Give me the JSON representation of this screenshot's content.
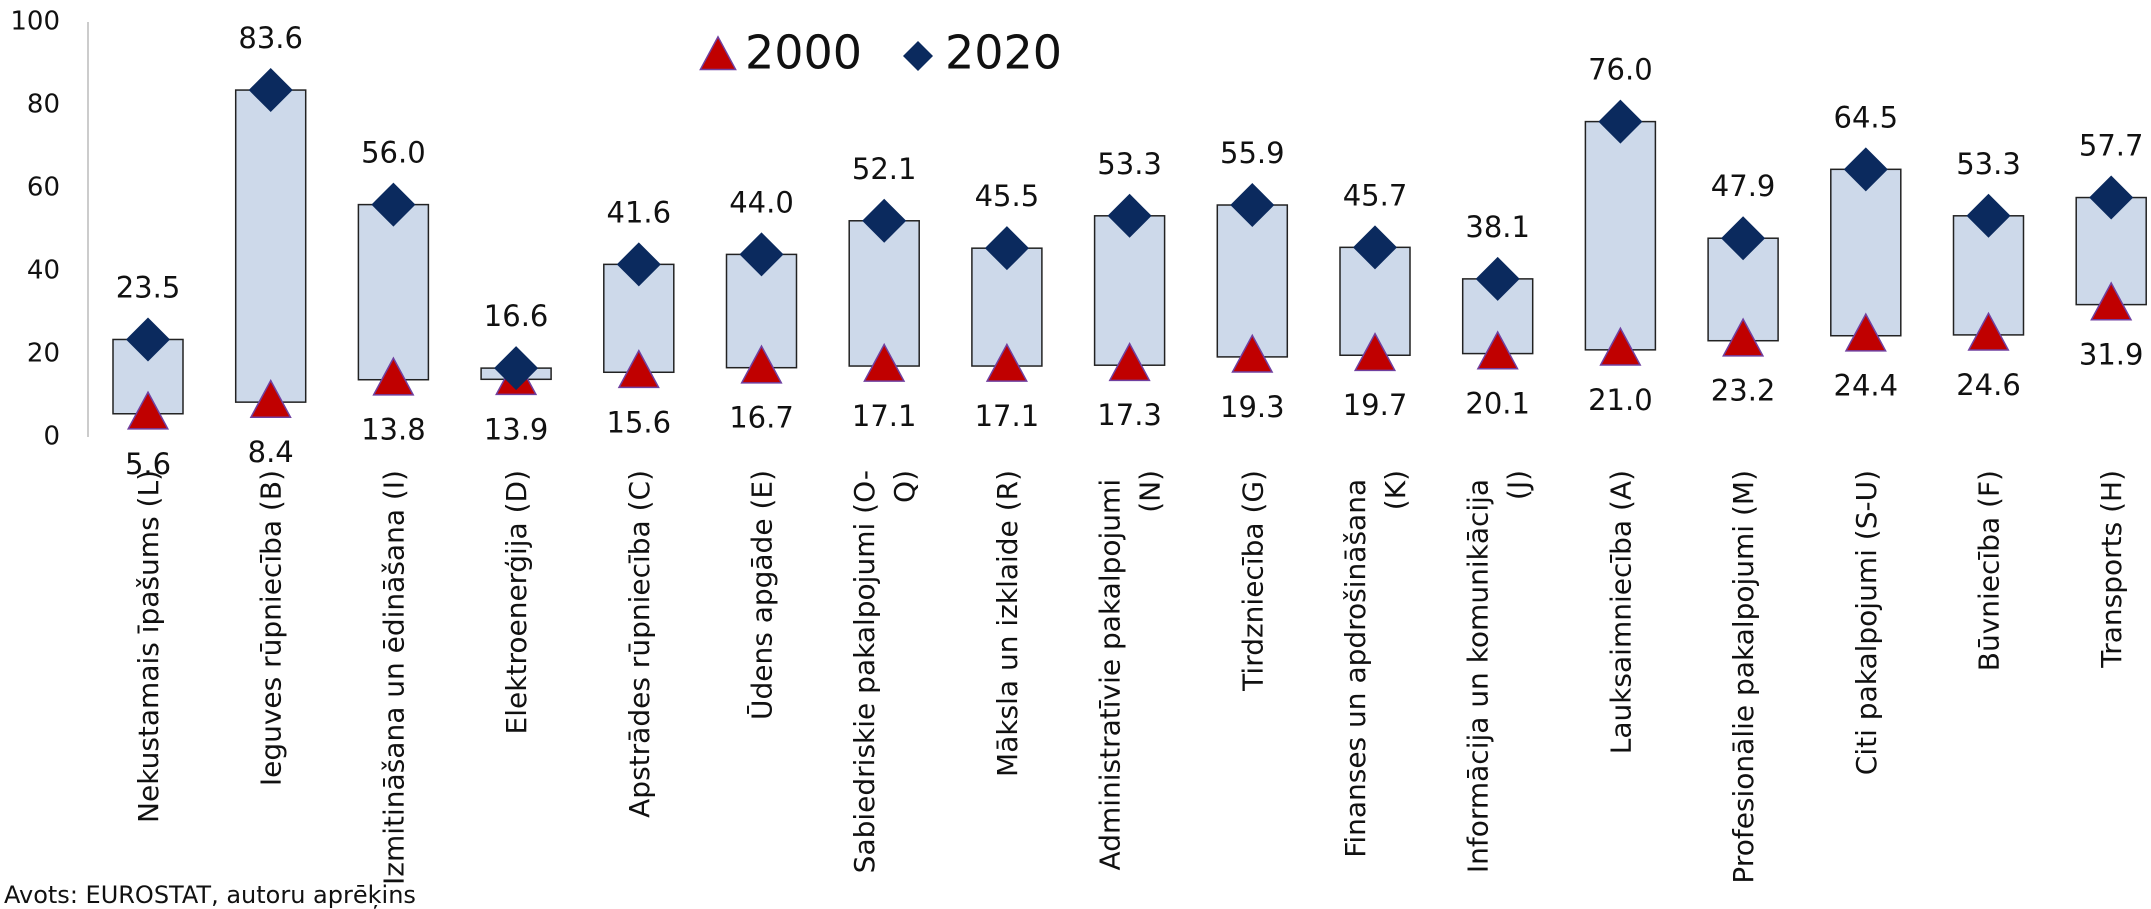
{
  "chart_data": {
    "type": "range",
    "categories": [
      "Nekustamais īpašums (L)",
      "Ieguves rūpniecība (B)",
      "Izmitināšana un ēdināšana (I)",
      "Elektroenerģija (D)",
      "Apstrādes rūpniecība (C)",
      "Ūdens apgāde (E)",
      "Sabiedriskie pakalpojumi (O-Q)",
      "Māksla un izklaide (R)",
      "Administratīvie pakalpojumi (N)",
      "Tirdzniecība (G)",
      "Finanses un apdrošināšana (K)",
      "Informācija un komunikācija (J)",
      "Lauksaimniecība (A)",
      "Profesionālie pakalpojumi (M)",
      "Citi pakalpojumi (S-U)",
      "Būvniecība (F)",
      "Transports (H)"
    ],
    "series": [
      {
        "name": "2000",
        "color": "#c00000",
        "values": [
          5.6,
          8.4,
          13.8,
          13.9,
          15.6,
          16.7,
          17.1,
          17.1,
          17.3,
          19.3,
          19.7,
          20.1,
          21.0,
          23.2,
          24.4,
          24.6,
          31.9
        ],
        "value_labels": [
          "5.6",
          "8.4",
          "13.8",
          "13.9",
          "15.6",
          "16.7",
          "17.1",
          "17.1",
          "17.3",
          "19.3",
          "19.7",
          "20.1",
          "21.0",
          "23.2",
          "24.4",
          "24.6",
          "31.9"
        ]
      },
      {
        "name": "2020",
        "color": "#0b2a5e",
        "values": [
          23.5,
          83.6,
          56.0,
          16.6,
          41.6,
          44.0,
          52.1,
          45.5,
          53.3,
          55.9,
          45.7,
          38.1,
          76.0,
          47.9,
          64.5,
          53.3,
          57.7
        ],
        "value_labels": [
          "23.5",
          "83.6",
          "56.0",
          "16.6",
          "41.6",
          "44.0",
          "52.1",
          "45.5",
          "53.3",
          "55.9",
          "45.7",
          "38.1",
          "76.0",
          "47.9",
          "64.5",
          "53.3",
          "57.7"
        ]
      }
    ],
    "bar_color": "#cdd9ea",
    "ylim": [
      0,
      100
    ],
    "yticks": [
      0,
      20,
      40,
      60,
      80,
      100
    ],
    "grid": false,
    "legend": "top",
    "source": "Avots: EUROSTAT, autoru aprēķins"
  }
}
